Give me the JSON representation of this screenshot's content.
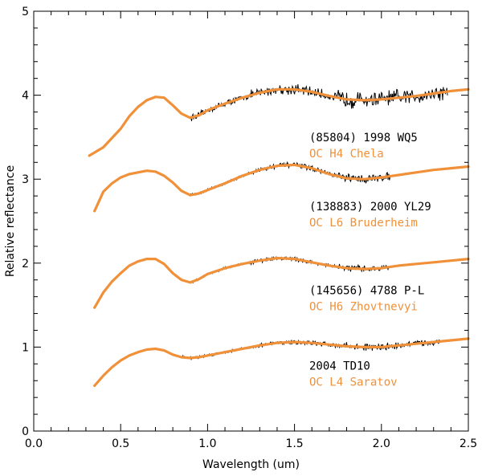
{
  "chart_data": {
    "type": "line",
    "title": "",
    "xlabel": "Wavelength (um)",
    "ylabel": "Relative reflectance",
    "xlim": [
      0.0,
      2.5
    ],
    "ylim": [
      0,
      5
    ],
    "xticks": [
      "0.0",
      "0.5",
      "1.0",
      "1.5",
      "2.0",
      "2.5"
    ],
    "yticks": [
      "0",
      "1",
      "2",
      "3",
      "4",
      "5"
    ],
    "colors": {
      "observed": "#000000",
      "model": "#f0913a",
      "axis": "#000000"
    },
    "series": [
      {
        "name": "(85804) 1998 WQ5",
        "meteorite": "OC H4 Chela",
        "offset": 4,
        "observed_range": [
          0.9,
          2.38
        ],
        "noise": 0.09,
        "model": {
          "x": [
            0.32,
            0.4,
            0.5,
            0.55,
            0.6,
            0.65,
            0.7,
            0.75,
            0.8,
            0.85,
            0.9,
            0.95,
            1.0,
            1.1,
            1.2,
            1.3,
            1.4,
            1.5,
            1.6,
            1.7,
            1.8,
            1.9,
            2.0,
            2.1,
            2.2,
            2.3,
            2.4,
            2.5
          ],
          "y": [
            3.28,
            3.38,
            3.6,
            3.75,
            3.86,
            3.94,
            3.98,
            3.97,
            3.88,
            3.78,
            3.73,
            3.76,
            3.82,
            3.9,
            3.97,
            4.03,
            4.07,
            4.07,
            4.04,
            3.99,
            3.95,
            3.94,
            3.95,
            3.97,
            3.99,
            4.02,
            4.05,
            4.07
          ]
        }
      },
      {
        "name": "(138883) 2000 YL29",
        "meteorite": "OC L6 Bruderheim",
        "offset": 3,
        "observed_range": [
          0.9,
          2.05
        ],
        "noise": 0.045,
        "model": {
          "x": [
            0.35,
            0.4,
            0.45,
            0.5,
            0.55,
            0.6,
            0.65,
            0.7,
            0.75,
            0.8,
            0.85,
            0.9,
            0.95,
            1.0,
            1.1,
            1.2,
            1.3,
            1.4,
            1.5,
            1.6,
            1.7,
            1.8,
            1.9,
            2.0,
            2.1,
            2.2,
            2.3,
            2.4,
            2.5
          ],
          "y": [
            2.62,
            2.85,
            2.95,
            3.02,
            3.06,
            3.08,
            3.1,
            3.09,
            3.04,
            2.96,
            2.86,
            2.81,
            2.83,
            2.87,
            2.95,
            3.04,
            3.11,
            3.16,
            3.17,
            3.13,
            3.06,
            3.01,
            3.0,
            3.02,
            3.05,
            3.08,
            3.11,
            3.13,
            3.15
          ]
        }
      },
      {
        "name": "(145656) 4788 P-L",
        "meteorite": "OC H6 Zhovtnevyi",
        "offset": 2,
        "observed_range": [
          0.9,
          2.05
        ],
        "noise": 0.035,
        "model": {
          "x": [
            0.35,
            0.4,
            0.45,
            0.5,
            0.55,
            0.6,
            0.65,
            0.7,
            0.75,
            0.8,
            0.85,
            0.9,
            0.95,
            1.0,
            1.1,
            1.2,
            1.3,
            1.4,
            1.5,
            1.6,
            1.7,
            1.8,
            1.9,
            2.0,
            2.1,
            2.2,
            2.3,
            2.4,
            2.5
          ],
          "y": [
            1.47,
            1.65,
            1.78,
            1.88,
            1.97,
            2.02,
            2.05,
            2.05,
            1.99,
            1.88,
            1.8,
            1.77,
            1.81,
            1.87,
            1.94,
            1.99,
            2.03,
            2.06,
            2.05,
            2.01,
            1.97,
            1.94,
            1.93,
            1.94,
            1.97,
            1.99,
            2.01,
            2.03,
            2.05
          ]
        }
      },
      {
        "name": "2004 TD10",
        "meteorite": "OC L4 Saratov",
        "offset": 1,
        "observed_range": [
          0.85,
          2.38
        ],
        "noise": 0.04,
        "model": {
          "x": [
            0.35,
            0.4,
            0.45,
            0.5,
            0.55,
            0.6,
            0.65,
            0.7,
            0.75,
            0.8,
            0.85,
            0.9,
            0.95,
            1.0,
            1.1,
            1.2,
            1.3,
            1.4,
            1.5,
            1.6,
            1.7,
            1.8,
            1.9,
            2.0,
            2.1,
            2.2,
            2.3,
            2.4,
            2.5
          ],
          "y": [
            0.54,
            0.66,
            0.76,
            0.84,
            0.9,
            0.94,
            0.97,
            0.98,
            0.96,
            0.91,
            0.88,
            0.87,
            0.88,
            0.9,
            0.94,
            0.98,
            1.02,
            1.05,
            1.06,
            1.05,
            1.03,
            1.01,
            1.0,
            1.0,
            1.02,
            1.04,
            1.06,
            1.08,
            1.1
          ]
        }
      }
    ]
  }
}
